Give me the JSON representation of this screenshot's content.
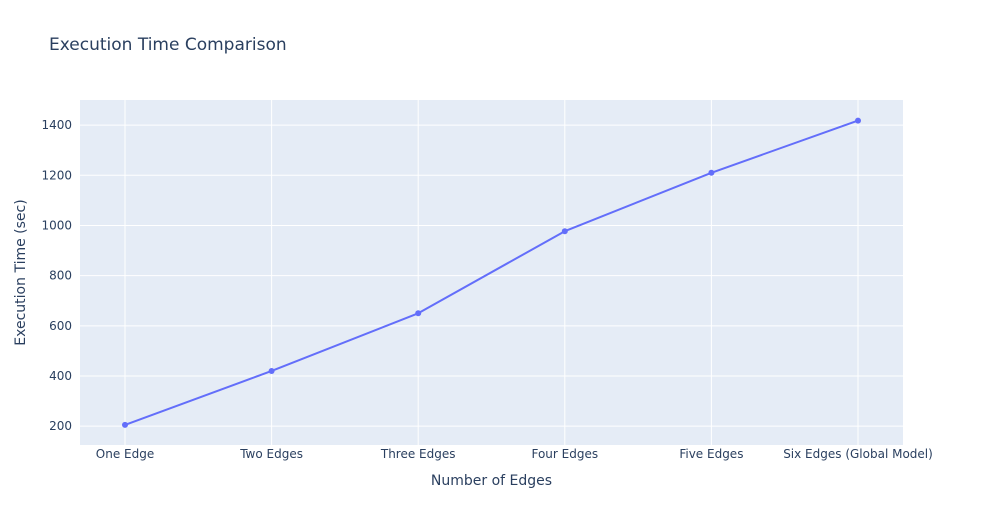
{
  "chart_data": {
    "type": "line",
    "title": "Execution Time Comparison",
    "xlabel": "Number of Edges",
    "ylabel": "Execution Time (sec)",
    "categories": [
      "One Edge",
      "Two Edges",
      "Three Edges",
      "Four Edges",
      "Five Edges",
      "Six Edges (Global Model)"
    ],
    "series": [
      {
        "values": [
          205,
          420,
          650,
          977,
          1210,
          1418
        ]
      }
    ],
    "ylim": [
      125,
      1500
    ],
    "yticks": [
      200,
      400,
      600,
      800,
      1000,
      1200,
      1400
    ],
    "grid": true,
    "legend": "none",
    "mode": "lines+markers",
    "colors": {
      "line": "#636efa",
      "plot_bg": "#e5ecf6",
      "grid": "#ffffff",
      "text": "#2a3f5f"
    }
  }
}
